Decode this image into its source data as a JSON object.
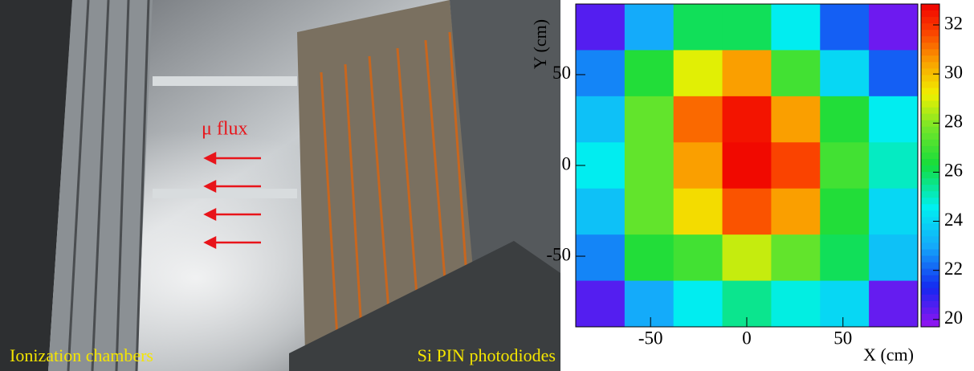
{
  "photo": {
    "flux_label": "μ flux",
    "left_label": "Ionization chambers",
    "right_label": "Si PIN photodiodes"
  },
  "chart_data": {
    "type": "heatmap",
    "x_label": "X (cm)",
    "y_label": "Y (cm)",
    "x": [
      -76.2,
      -50.8,
      -25.4,
      0,
      25.4,
      50.8,
      76.2
    ],
    "y": [
      76.2,
      50.8,
      25.4,
      0,
      -25.4,
      -50.8,
      -76.2
    ],
    "z": [
      [
        20.5,
        23.0,
        26.0,
        26.0,
        24.5,
        22.0,
        20.2
      ],
      [
        22.5,
        26.5,
        29.0,
        30.5,
        27.0,
        24.0,
        22.0
      ],
      [
        23.5,
        27.5,
        31.2,
        32.5,
        30.5,
        26.5,
        24.5
      ],
      [
        24.5,
        27.5,
        30.5,
        32.7,
        31.7,
        27.0,
        25.0
      ],
      [
        23.5,
        27.5,
        29.5,
        31.5,
        30.5,
        26.5,
        24.0
      ],
      [
        22.5,
        26.5,
        27.0,
        28.7,
        27.5,
        26.0,
        23.5
      ],
      [
        20.5,
        23.0,
        24.5,
        25.5,
        24.7,
        24.0,
        20.3
      ]
    ],
    "xlim": [
      -88.9,
      88.9
    ],
    "ylim": [
      -88.9,
      88.9
    ],
    "xticks": [
      -50,
      0,
      50
    ],
    "yticks": [
      -50,
      0,
      50
    ],
    "zlim": [
      19.7,
      32.85
    ],
    "zticks": [
      20,
      22,
      24,
      26,
      28,
      30,
      32
    ]
  }
}
